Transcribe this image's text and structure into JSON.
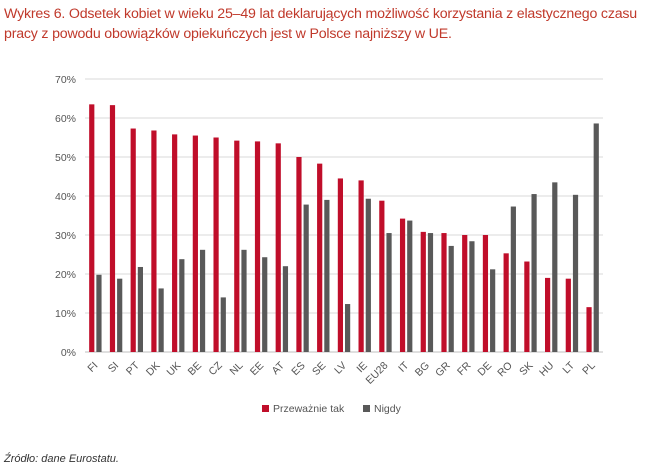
{
  "title_lines": [
    "Wykres 6. Odsetek kobiet w wieku 25–49 lat deklarujących możliwość korzystania z elastycznego czasu",
    "pracy z powodu obowiązków opiekuńczych jest w Polsce najniższy w UE."
  ],
  "source": "Źródło: dane Eurostatu.",
  "colors": {
    "series1": "#c00e2a",
    "series2": "#595959",
    "grid": "#d9d9d9",
    "title": "#c0392b"
  },
  "chart_data": {
    "type": "bar",
    "title": "",
    "xlabel": "",
    "ylabel": "",
    "ylim": [
      0,
      70
    ],
    "yticks": [
      "0%",
      "10%",
      "20%",
      "30%",
      "40%",
      "50%",
      "60%",
      "70%"
    ],
    "grid": true,
    "legend_position": "bottom",
    "categories": [
      "FI",
      "SI",
      "PT",
      "DK",
      "UK",
      "BE",
      "CZ",
      "NL",
      "EE",
      "AT",
      "ES",
      "SE",
      "LV",
      "IE",
      "EU28",
      "IT",
      "BG",
      "GR",
      "FR",
      "DE",
      "RO",
      "SK",
      "HU",
      "LT",
      "PL"
    ],
    "series": [
      {
        "name": "Przeważnie tak",
        "values": [
          63.5,
          63.3,
          57.3,
          56.8,
          55.8,
          55.5,
          55.0,
          54.2,
          54.0,
          53.5,
          50.0,
          48.3,
          44.5,
          44.0,
          38.8,
          34.2,
          30.8,
          30.5,
          30.0,
          30.0,
          25.3,
          23.2,
          19.0,
          18.8,
          11.5
        ]
      },
      {
        "name": "Nigdy",
        "values": [
          19.8,
          18.8,
          21.8,
          16.3,
          23.8,
          26.2,
          14.0,
          26.2,
          24.3,
          22.0,
          37.8,
          39.0,
          12.3,
          39.3,
          30.5,
          33.7,
          30.5,
          27.2,
          28.4,
          21.2,
          37.3,
          40.5,
          43.5,
          40.3,
          58.6
        ]
      }
    ]
  }
}
